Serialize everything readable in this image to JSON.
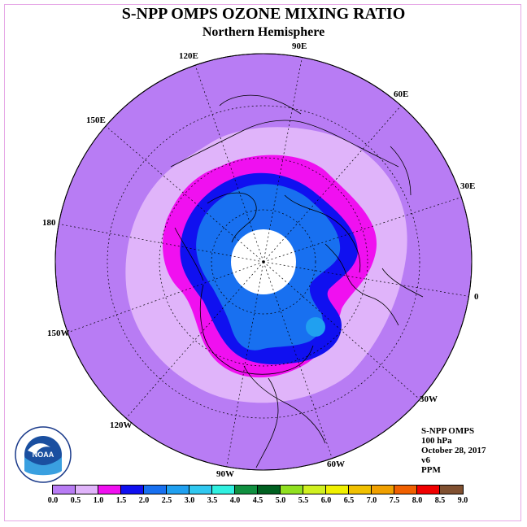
{
  "title": "S-NPP OMPS OZONE MIXING RATIO",
  "subtitle": "Northern Hemisphere",
  "longitude_labels": [
    "120E",
    "90E",
    "60E",
    "150E",
    "30E",
    "180",
    "0",
    "150W",
    "30W",
    "120W",
    "60W",
    "90W"
  ],
  "info": {
    "instrument": "S-NPP OMPS",
    "level": "100 hPa",
    "date": "October 28, 2017",
    "version": "v6",
    "units": "PPM"
  },
  "logo": {
    "text": "NOAA",
    "ring_text_top": "NATIONAL OCEANIC AND ATMOSPHERIC ADMINISTRATION",
    "ring_text_bottom": "U.S. DEPARTMENT OF COMMERCE"
  },
  "colorbar": {
    "colors": [
      "#b87cf4",
      "#e0b4fa",
      "#f010f0",
      "#1010f0",
      "#1870f0",
      "#20a0f0",
      "#30c8f0",
      "#30f0e0",
      "#109040",
      "#006020",
      "#90e020",
      "#d0f020",
      "#f0f000",
      "#f0c000",
      "#f0a000",
      "#f06000",
      "#f00000",
      "#805030"
    ],
    "tick_labels": [
      "0.0",
      "0.5",
      "1.0",
      "1.5",
      "2.0",
      "2.5",
      "3.0",
      "3.5",
      "4.0",
      "4.5",
      "5.0",
      "5.5",
      "6.0",
      "6.5",
      "7.0",
      "7.5",
      "8.0",
      "8.5",
      "9.0"
    ]
  },
  "map_colors": {
    "outer": "#b87cf4",
    "light": "#e0b4fa",
    "magenta": "#f010f0",
    "blue": "#1010f0",
    "mid_blue": "#1870f0",
    "light_blue": "#20a0f0",
    "no_data": "#ffffff"
  }
}
